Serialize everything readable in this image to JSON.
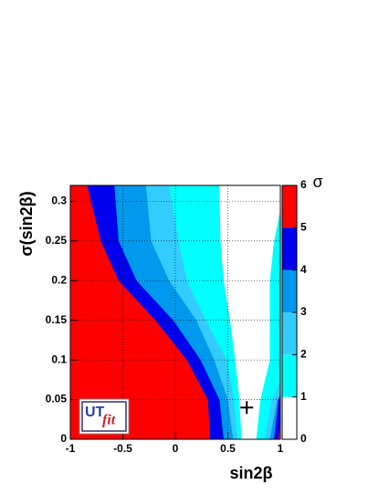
{
  "chart_data": {
    "type": "contour",
    "xlabel": "sin2β",
    "ylabel": "σ(sin2β)",
    "xlim": [
      -1,
      1
    ],
    "ylim": [
      0,
      0.32
    ],
    "xticks": [
      -1,
      -0.5,
      0,
      0.5,
      1
    ],
    "yticks": [
      0,
      0.05,
      0.1,
      0.15,
      0.2,
      0.25,
      0.3
    ],
    "grid": true,
    "y": [
      0,
      0.05,
      0.1,
      0.15,
      0.2,
      0.25,
      0.32
    ],
    "levels": [
      {
        "level": 1,
        "color": "#00ffff",
        "left": [
          0.63,
          0.61,
          0.57,
          0.52,
          0.46,
          0.43,
          0.42
        ],
        "right": [
          0.77,
          0.81,
          0.9,
          0.9,
          0.9,
          0.94,
          1.05
        ]
      },
      {
        "level": 2,
        "color": "#33ccff",
        "left": [
          0.59,
          0.56,
          0.49,
          0.29,
          0.11,
          0.03,
          -0.06
        ],
        "right": [
          0.85,
          0.92,
          1.1,
          1.2,
          1.2,
          1.2,
          1.2
        ]
      },
      {
        "level": 3,
        "color": "#0099ee",
        "left": [
          0.55,
          0.5,
          0.37,
          0.2,
          -0.06,
          -0.23,
          -0.28
        ],
        "right": [
          0.9,
          0.97,
          1.2,
          1.2,
          1.2,
          1.2,
          1.2
        ]
      },
      {
        "level": 4,
        "color": "#0000ee",
        "left": [
          0.46,
          0.42,
          0.24,
          -0.02,
          -0.37,
          -0.54,
          -0.58
        ],
        "right": [
          0.94,
          0.98,
          1.2,
          1.2,
          1.2,
          1.2,
          1.2
        ]
      },
      {
        "level": 5,
        "color": "#ff0000",
        "left": [
          0.33,
          0.31,
          0.11,
          -0.19,
          -0.54,
          -0.71,
          -0.84
        ],
        "right": [
          0.98,
          1.03,
          1.2,
          1.2,
          1.2,
          1.2,
          1.2
        ]
      }
    ],
    "base_color": "#ffffff",
    "marker": {
      "x": 0.68,
      "y": 0.04
    },
    "colorbar": {
      "title": "σ",
      "lim": [
        0,
        6
      ],
      "ticks": [
        0,
        1,
        2,
        3,
        4,
        5,
        6
      ],
      "colors": [
        "#ffffff",
        "#00ffff",
        "#33ccff",
        "#0099ee",
        "#0000ee",
        "#ff0000"
      ]
    },
    "logo": {
      "left": "UT",
      "right": "fit"
    }
  }
}
